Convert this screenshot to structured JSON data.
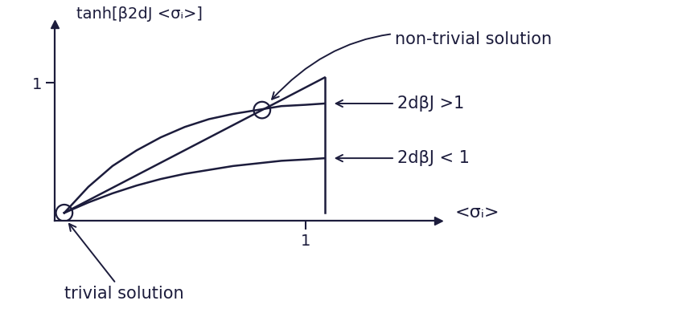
{
  "chart_data": {
    "type": "line",
    "y_label": "tanh[β2dJ <σᵢ>]",
    "x_label": "<σᵢ>",
    "annotations": [
      "non-trivial solution",
      "2dβJ >1",
      "2dβJ < 1",
      "trivial solution"
    ],
    "color": "#1c1c3c",
    "xlim": [
      -0.04,
      1.55
    ],
    "ylim": [
      -0.06,
      1.45
    ],
    "xticks": [
      1
    ],
    "yticks": [
      1
    ],
    "grid": false,
    "series": [
      {
        "x": [
          0,
          1.08
        ],
        "values": [
          0,
          1.04
        ],
        "type": "line"
      },
      {
        "x": [
          0,
          0.1,
          0.2,
          0.3,
          0.4,
          0.5,
          0.6,
          0.7,
          0.8,
          0.9,
          1.0,
          1.08
        ],
        "values": [
          0,
          0.2,
          0.36,
          0.48,
          0.58,
          0.66,
          0.72,
          0.76,
          0.79,
          0.82,
          0.83,
          0.84
        ],
        "type": "line"
      },
      {
        "x": [
          0,
          0.1,
          0.2,
          0.3,
          0.4,
          0.5,
          0.6,
          0.7,
          0.8,
          0.9,
          1.0,
          1.08
        ],
        "values": [
          0,
          0.08,
          0.15,
          0.21,
          0.26,
          0.3,
          0.33,
          0.36,
          0.38,
          0.4,
          0.41,
          0.42
        ],
        "type": "line"
      },
      {
        "x": [
          1.08,
          1.08
        ],
        "values": [
          0,
          1.04
        ],
        "type": "line"
      },
      {
        "x": [
          0,
          0.82
        ],
        "values": [
          0,
          0.79
        ],
        "type": "scatter",
        "marker": "o"
      }
    ]
  }
}
